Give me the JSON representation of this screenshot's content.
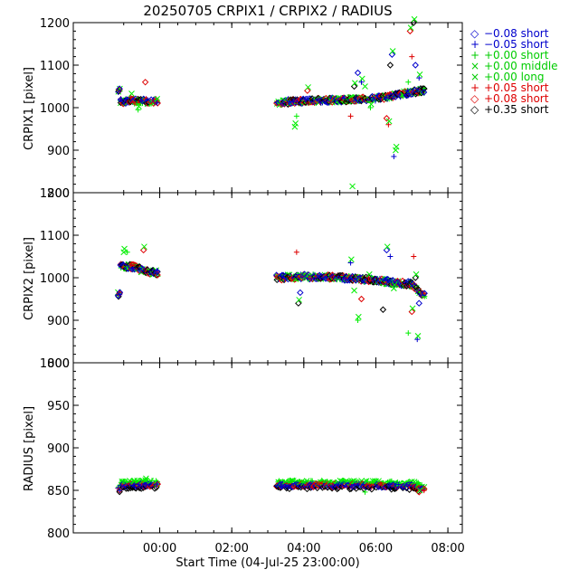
{
  "chart_data": [
    {
      "type": "scatter",
      "title": "20250705 CRPIX1 / CRPIX2 / RADIUS",
      "ylabel": "CRPIX1 [pixel]",
      "ylim": [
        800,
        1200
      ],
      "yticks": [
        "800",
        "900",
        "1000",
        "1100",
        "1200"
      ],
      "trend": [
        [
          -0.1,
          1015
        ],
        [
          0.9,
          1015
        ],
        [
          4.3,
          1012
        ],
        [
          5.0,
          1016
        ],
        [
          6.0,
          1018
        ],
        [
          7.0,
          1022
        ],
        [
          7.5,
          1028
        ],
        [
          8.0,
          1036
        ],
        [
          8.3,
          1040
        ]
      ],
      "outliers": [
        [
          4.75,
          955
        ],
        [
          4.8,
          980
        ],
        [
          5.1,
          1040
        ],
        [
          6.3,
          980
        ],
        [
          6.4,
          1050
        ],
        [
          6.5,
          1082
        ],
        [
          6.6,
          1060
        ],
        [
          6.7,
          1050
        ],
        [
          6.85,
          1000
        ],
        [
          7.3,
          975
        ],
        [
          7.35,
          960
        ],
        [
          7.4,
          1100
        ],
        [
          7.45,
          1125
        ],
        [
          7.5,
          885
        ],
        [
          7.55,
          900
        ],
        [
          7.9,
          1060
        ],
        [
          7.95,
          1180
        ],
        [
          8.0,
          1120
        ],
        [
          8.05,
          1200
        ],
        [
          8.1,
          1100
        ],
        [
          8.2,
          1070
        ],
        [
          6.35,
          815
        ],
        [
          0.4,
          995
        ],
        [
          0.6,
          1060
        ],
        [
          0.2,
          1025
        ]
      ]
    },
    {
      "type": "scatter",
      "ylabel": "CRPIX2 [pixel]",
      "ylim": [
        800,
        1200
      ],
      "yticks": [
        "800",
        "900",
        "1000",
        "1100",
        "1200"
      ],
      "trend": [
        [
          -0.1,
          1028
        ],
        [
          0.3,
          1025
        ],
        [
          0.6,
          1015
        ],
        [
          0.9,
          1012
        ],
        [
          4.3,
          1000
        ],
        [
          5.0,
          1003
        ],
        [
          6.0,
          1000
        ],
        [
          7.0,
          995
        ],
        [
          7.5,
          988
        ],
        [
          8.0,
          985
        ],
        [
          8.3,
          960
        ]
      ],
      "outliers": [
        [
          0.0,
          1060
        ],
        [
          0.1,
          1060
        ],
        [
          0.55,
          1065
        ],
        [
          4.8,
          1060
        ],
        [
          4.85,
          940
        ],
        [
          4.9,
          965
        ],
        [
          6.3,
          1035
        ],
        [
          6.4,
          970
        ],
        [
          6.5,
          900
        ],
        [
          6.6,
          950
        ],
        [
          6.8,
          1000
        ],
        [
          7.2,
          925
        ],
        [
          7.3,
          1065
        ],
        [
          7.4,
          1050
        ],
        [
          7.5,
          975
        ],
        [
          7.9,
          870
        ],
        [
          8.0,
          920
        ],
        [
          8.05,
          1050
        ],
        [
          8.1,
          1000
        ],
        [
          8.2,
          940
        ],
        [
          8.15,
          855
        ]
      ]
    },
    {
      "type": "scatter",
      "ylabel": "RADIUS [pixel]",
      "xlabel": "Start Time (04-Jul-25 23:00:00)",
      "ylim": [
        800,
        1000
      ],
      "yticks": [
        "800",
        "850",
        "900",
        "950",
        "1000"
      ],
      "xticks": [
        "00:00",
        "02:00",
        "04:00",
        "06:00",
        "08:00"
      ],
      "xtick_values": [
        1,
        3,
        5,
        7,
        9
      ],
      "trend": [
        [
          -0.1,
          856
        ],
        [
          0.9,
          856
        ],
        [
          4.3,
          856
        ],
        [
          6.0,
          856
        ],
        [
          8.0,
          855
        ],
        [
          8.3,
          852
        ]
      ],
      "outliers": [
        [
          0.6,
          862
        ],
        [
          6.7,
          848
        ],
        [
          8.2,
          848
        ]
      ]
    }
  ],
  "x_range": [
    -1.4,
    9.4
  ],
  "legend": [
    {
      "symbol": "◇",
      "text": "−0.08 short",
      "color": "#0000cc"
    },
    {
      "symbol": "+",
      "text": "−0.05 short",
      "color": "#0000cc"
    },
    {
      "symbol": "+",
      "text": "+0.00 short",
      "color": "#00cc00"
    },
    {
      "symbol": "×",
      "text": "+0.00 middle",
      "color": "#00cc00"
    },
    {
      "symbol": "×",
      "text": "+0.00 long",
      "color": "#00cc00"
    },
    {
      "symbol": "+",
      "text": "+0.05 short",
      "color": "#dd0000"
    },
    {
      "symbol": "◇",
      "text": "+0.08 short",
      "color": "#dd0000"
    },
    {
      "symbol": "◇",
      "text": "+0.35 short",
      "color": "#000000"
    }
  ],
  "colors": {
    "blue": "#0000cc",
    "green": "#00ee00",
    "red": "#dd0000",
    "black": "#000000"
  }
}
